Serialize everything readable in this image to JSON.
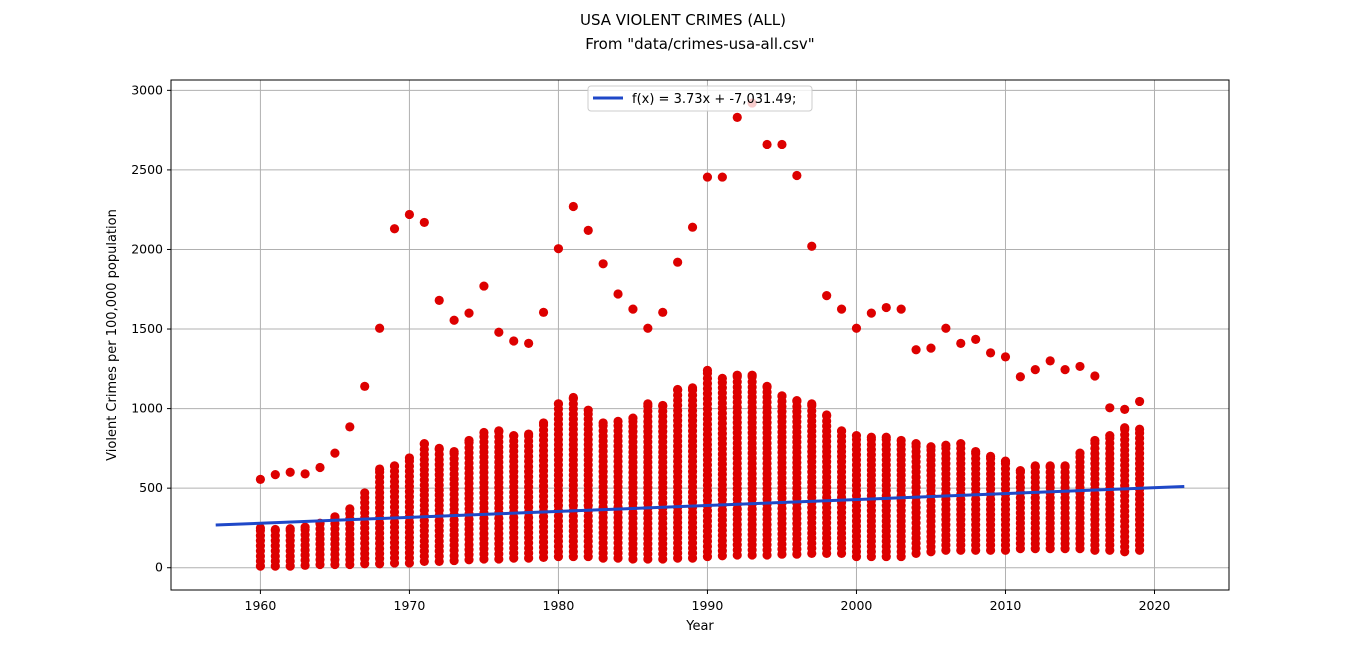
{
  "chart_data": {
    "type": "scatter",
    "title": "USA VIOLENT CRIMES (ALL)",
    "subtitle": "From \"data/crimes-usa-all.csv\"",
    "xlabel": "Year",
    "ylabel": "Violent Crimes per 100,000 population",
    "xlim": [
      1954,
      2025
    ],
    "ylim": [
      -140,
      3065
    ],
    "xticks": [
      1960,
      1970,
      1980,
      1990,
      2000,
      2010,
      2020
    ],
    "yticks": [
      0,
      500,
      1000,
      1500,
      2000,
      2500,
      3000
    ],
    "grid": true,
    "legend_position": "top-center",
    "colors": {
      "points": "#dd0000",
      "line": "#1f48c8",
      "grid": "#b0b0b0"
    },
    "series": [
      {
        "name": "f(x) = 3.73x + -7,031.49;",
        "type": "line",
        "slope": 3.73,
        "intercept": -7031.49,
        "x": [
          1957,
          2022
        ]
      },
      {
        "type": "scatter",
        "points_description": "state rates per year",
        "outliers": [
          [
            1960,
            555
          ],
          [
            1961,
            585
          ],
          [
            1962,
            600
          ],
          [
            1963,
            590
          ],
          [
            1964,
            630
          ],
          [
            1965,
            720
          ],
          [
            1966,
            885
          ],
          [
            1967,
            1140
          ],
          [
            1968,
            1505
          ],
          [
            1969,
            2130
          ],
          [
            1970,
            2220
          ],
          [
            1971,
            2170
          ],
          [
            1972,
            1680
          ],
          [
            1973,
            1555
          ],
          [
            1974,
            1600
          ],
          [
            1975,
            1770
          ],
          [
            1976,
            1480
          ],
          [
            1977,
            1425
          ],
          [
            1978,
            1410
          ],
          [
            1979,
            1605
          ],
          [
            1980,
            2005
          ],
          [
            1981,
            2270
          ],
          [
            1982,
            2120
          ],
          [
            1983,
            1910
          ],
          [
            1984,
            1720
          ],
          [
            1985,
            1625
          ],
          [
            1986,
            1505
          ],
          [
            1987,
            1605
          ],
          [
            1988,
            1920
          ],
          [
            1989,
            2140
          ],
          [
            1990,
            2455
          ],
          [
            1991,
            2455
          ],
          [
            1992,
            2830
          ],
          [
            1993,
            2920
          ],
          [
            1994,
            2660
          ],
          [
            1995,
            2660
          ],
          [
            1996,
            2465
          ],
          [
            1997,
            2020
          ],
          [
            1998,
            1710
          ],
          [
            1999,
            1625
          ],
          [
            2000,
            1505
          ],
          [
            2001,
            1600
          ],
          [
            2002,
            1635
          ],
          [
            2003,
            1625
          ],
          [
            2004,
            1370
          ],
          [
            2005,
            1380
          ],
          [
            2006,
            1505
          ],
          [
            2007,
            1410
          ],
          [
            2008,
            1435
          ],
          [
            2009,
            1350
          ],
          [
            2010,
            1325
          ],
          [
            2011,
            1200
          ],
          [
            2012,
            1245
          ],
          [
            2013,
            1300
          ],
          [
            2014,
            1245
          ],
          [
            2015,
            1265
          ],
          [
            2016,
            1205
          ],
          [
            2017,
            1005
          ],
          [
            2018,
            995
          ],
          [
            2019,
            1045
          ]
        ],
        "main_band": [
          [
            1960,
            10,
            250
          ],
          [
            1961,
            10,
            240
          ],
          [
            1962,
            10,
            245
          ],
          [
            1963,
            15,
            255
          ],
          [
            1964,
            20,
            280
          ],
          [
            1965,
            20,
            320
          ],
          [
            1966,
            20,
            370
          ],
          [
            1967,
            25,
            470
          ],
          [
            1968,
            25,
            620
          ],
          [
            1969,
            30,
            640
          ],
          [
            1970,
            30,
            690
          ],
          [
            1971,
            40,
            780
          ],
          [
            1972,
            40,
            750
          ],
          [
            1973,
            45,
            730
          ],
          [
            1974,
            50,
            800
          ],
          [
            1975,
            55,
            850
          ],
          [
            1976,
            55,
            860
          ],
          [
            1977,
            60,
            830
          ],
          [
            1978,
            60,
            840
          ],
          [
            1979,
            65,
            910
          ],
          [
            1980,
            70,
            1030
          ],
          [
            1981,
            70,
            1070
          ],
          [
            1982,
            70,
            990
          ],
          [
            1983,
            60,
            910
          ],
          [
            1984,
            60,
            920
          ],
          [
            1985,
            55,
            940
          ],
          [
            1986,
            55,
            1030
          ],
          [
            1987,
            55,
            1020
          ],
          [
            1988,
            60,
            1120
          ],
          [
            1989,
            60,
            1130
          ],
          [
            1990,
            70,
            1240
          ],
          [
            1991,
            75,
            1190
          ],
          [
            1992,
            80,
            1210
          ],
          [
            1993,
            80,
            1210
          ],
          [
            1994,
            80,
            1140
          ],
          [
            1995,
            85,
            1080
          ],
          [
            1996,
            85,
            1050
          ],
          [
            1997,
            90,
            1030
          ],
          [
            1998,
            90,
            960
          ],
          [
            1999,
            90,
            860
          ],
          [
            2000,
            70,
            830
          ],
          [
            2001,
            70,
            820
          ],
          [
            2002,
            70,
            820
          ],
          [
            2003,
            70,
            800
          ],
          [
            2004,
            90,
            780
          ],
          [
            2005,
            100,
            760
          ],
          [
            2006,
            110,
            770
          ],
          [
            2007,
            110,
            780
          ],
          [
            2008,
            110,
            730
          ],
          [
            2009,
            110,
            700
          ],
          [
            2010,
            110,
            670
          ],
          [
            2011,
            120,
            610
          ],
          [
            2012,
            120,
            640
          ],
          [
            2013,
            120,
            640
          ],
          [
            2014,
            120,
            640
          ],
          [
            2015,
            120,
            720
          ],
          [
            2016,
            110,
            800
          ],
          [
            2017,
            110,
            830
          ],
          [
            2018,
            100,
            880
          ],
          [
            2019,
            110,
            870
          ]
        ]
      }
    ]
  }
}
